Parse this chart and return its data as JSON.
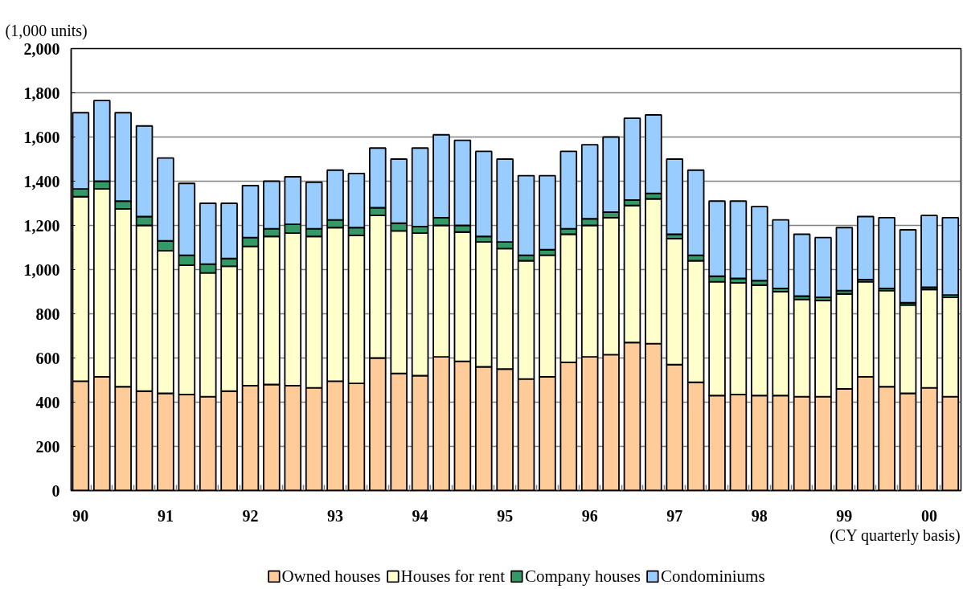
{
  "chart_data": {
    "type": "bar",
    "stacked": true,
    "ylabel": "(1,000 units)",
    "xlabel": "(CY quarterly basis)",
    "categories": [
      "90",
      null,
      null,
      null,
      "91",
      null,
      null,
      null,
      "92",
      null,
      null,
      null,
      "93",
      null,
      null,
      null,
      "94",
      null,
      null,
      null,
      "95",
      null,
      null,
      null,
      "96",
      null,
      null,
      null,
      "97",
      null,
      null,
      null,
      "98",
      null,
      null,
      null,
      "99",
      null,
      null,
      null,
      "00",
      null
    ],
    "ylim": [
      0,
      2000
    ],
    "yticks": [
      0,
      200,
      400,
      600,
      800,
      {
        "value": 1000,
        "label": "1,000"
      },
      {
        "value": 1200,
        "label": "1,200"
      },
      {
        "value": 1400,
        "label": "1,400"
      },
      {
        "value": 1600,
        "label": "1,600"
      },
      {
        "value": 1800,
        "label": "1,800"
      },
      {
        "value": 2000,
        "label": "2,000"
      }
    ],
    "grid": "y",
    "legend": "bottom",
    "series": [
      {
        "name": "Owned houses",
        "color": "#ffcc99",
        "values": [
          495,
          515,
          470,
          450,
          440,
          435,
          425,
          450,
          475,
          480,
          475,
          465,
          495,
          485,
          600,
          530,
          520,
          605,
          585,
          560,
          550,
          505,
          515,
          580,
          605,
          615,
          670,
          665,
          570,
          490,
          430,
          435,
          430,
          430,
          425,
          425,
          460,
          515,
          470,
          440,
          465,
          425
        ]
      },
      {
        "name": "Houses for rent",
        "color": "#ffffcc",
        "values": [
          835,
          850,
          805,
          750,
          645,
          585,
          560,
          565,
          630,
          670,
          690,
          685,
          695,
          670,
          645,
          645,
          645,
          595,
          585,
          565,
          545,
          535,
          550,
          580,
          595,
          620,
          620,
          655,
          570,
          550,
          515,
          505,
          500,
          470,
          440,
          435,
          430,
          430,
          435,
          400,
          445,
          450
        ]
      },
      {
        "name": "Company houses",
        "color": "#339966",
        "values": [
          35,
          35,
          35,
          40,
          45,
          45,
          40,
          35,
          40,
          35,
          40,
          35,
          35,
          35,
          35,
          35,
          30,
          35,
          30,
          25,
          30,
          25,
          25,
          25,
          30,
          25,
          25,
          25,
          20,
          25,
          25,
          20,
          20,
          15,
          15,
          15,
          15,
          10,
          10,
          10,
          10,
          10
        ]
      },
      {
        "name": "Condominiums",
        "color": "#99ccff",
        "values": [
          345,
          365,
          400,
          410,
          375,
          325,
          275,
          250,
          235,
          215,
          215,
          210,
          225,
          245,
          270,
          290,
          355,
          375,
          385,
          385,
          375,
          360,
          335,
          350,
          335,
          340,
          370,
          355,
          340,
          385,
          340,
          350,
          335,
          310,
          280,
          270,
          285,
          285,
          320,
          330,
          325,
          350
        ]
      }
    ]
  }
}
